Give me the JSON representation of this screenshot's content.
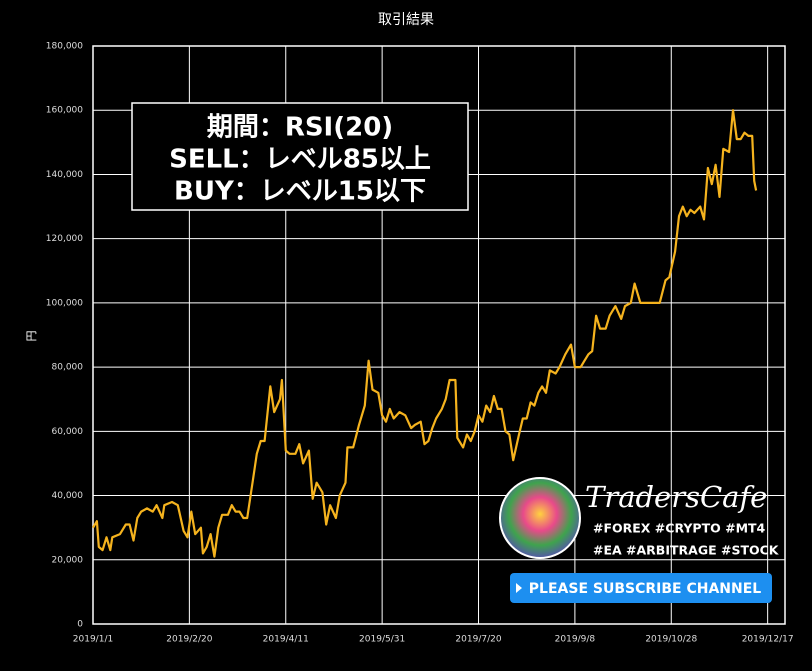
{
  "chart_data": {
    "type": "line",
    "title": "取引結果",
    "y_label": "円",
    "color": "#f5b31e",
    "grid": true,
    "annotations": [
      "期間：RSI(20)",
      "SELL：レベル85以上",
      "BUY：レベル15以下"
    ],
    "x": [
      "2019/1/1",
      "2019/1/3",
      "2019/1/4",
      "2019/1/6",
      "2019/1/8",
      "2019/1/10",
      "2019/1/11",
      "2019/1/15",
      "2019/1/18",
      "2019/1/20",
      "2019/1/22",
      "2019/1/24",
      "2019/1/26",
      "2019/1/29",
      "2019/2/1",
      "2019/2/3",
      "2019/2/6",
      "2019/2/7",
      "2019/2/11",
      "2019/2/14",
      "2019/2/17",
      "2019/2/19",
      "2019/2/21",
      "2019/2/23",
      "2019/2/26",
      "2019/2/27",
      "2019/3/1",
      "2019/3/3",
      "2019/3/5",
      "2019/3/7",
      "2019/3/9",
      "2019/3/12",
      "2019/3/14",
      "2019/3/16",
      "2019/3/18",
      "2019/3/20",
      "2019/3/22",
      "2019/3/25",
      "2019/3/27",
      "2019/3/29",
      "2019/3/31",
      "2019/4/3",
      "2019/4/5",
      "2019/4/8",
      "2019/4/9",
      "2019/4/11",
      "2019/4/13",
      "2019/4/16",
      "2019/4/18",
      "2019/4/20",
      "2019/4/23",
      "2019/4/25",
      "2019/4/27",
      "2019/4/30",
      "2019/5/2",
      "2019/5/4",
      "2019/5/7",
      "2019/5/9",
      "2019/5/12",
      "2019/5/13",
      "2019/5/16",
      "2019/5/19",
      "2019/5/22",
      "2019/5/24",
      "2019/5/26",
      "2019/5/29",
      "2019/5/31",
      "2019/6/2",
      "2019/6/4",
      "2019/6/6",
      "2019/6/9",
      "2019/6/12",
      "2019/6/15",
      "2019/6/17",
      "2019/6/20",
      "2019/6/22",
      "2019/6/24",
      "2019/6/26",
      "2019/6/28",
      "2019/7/1",
      "2019/7/3",
      "2019/7/5",
      "2019/7/8",
      "2019/7/9",
      "2019/7/12",
      "2019/7/14",
      "2019/7/16",
      "2019/7/18",
      "2019/7/20",
      "2019/7/22",
      "2019/7/24",
      "2019/7/26",
      "2019/7/28",
      "2019/7/30",
      "2019/8/1",
      "2019/8/3",
      "2019/8/5",
      "2019/8/7",
      "2019/8/10",
      "2019/8/12",
      "2019/8/14",
      "2019/8/16",
      "2019/8/18",
      "2019/8/20",
      "2019/8/22",
      "2019/8/24",
      "2019/8/26",
      "2019/8/29",
      "2019/8/31",
      "2019/9/3",
      "2019/9/6",
      "2019/9/8",
      "2019/9/11",
      "2019/9/13",
      "2019/9/15",
      "2019/9/17",
      "2019/9/19",
      "2019/9/21",
      "2019/9/24",
      "2019/9/26",
      "2019/9/29",
      "2019/10/2",
      "2019/10/4",
      "2019/10/7",
      "2019/10/9",
      "2019/10/12",
      "2019/10/17",
      "2019/10/22",
      "2019/10/25",
      "2019/10/27",
      "2019/10/30",
      "2019/11/1",
      "2019/11/3",
      "2019/11/5",
      "2019/11/7",
      "2019/11/9",
      "2019/11/12",
      "2019/11/14",
      "2019/11/16",
      "2019/11/18",
      "2019/11/20",
      "2019/11/22",
      "2019/11/24",
      "2019/11/27",
      "2019/11/29",
      "2019/12/1",
      "2019/12/3",
      "2019/12/5",
      "2019/12/7",
      "2019/12/9",
      "2019/12/10",
      "2019/12/11"
    ],
    "values": [
      30000,
      32000,
      24000,
      23000,
      27000,
      23000,
      27000,
      28000,
      31000,
      31000,
      26000,
      33000,
      35000,
      36000,
      35000,
      37000,
      33000,
      37000,
      38000,
      37000,
      29000,
      27000,
      35000,
      28000,
      30000,
      22000,
      24000,
      28000,
      21000,
      30000,
      34000,
      34000,
      37000,
      35000,
      35000,
      33000,
      33000,
      45000,
      53000,
      57000,
      57000,
      74000,
      66000,
      70000,
      76000,
      54000,
      53000,
      53000,
      56000,
      50000,
      54000,
      39000,
      44000,
      41000,
      31000,
      37000,
      33000,
      40000,
      44000,
      55000,
      55000,
      62000,
      68000,
      82000,
      73000,
      72000,
      65000,
      63000,
      67000,
      64000,
      66000,
      65000,
      61000,
      62000,
      63000,
      56000,
      57000,
      61000,
      64000,
      67000,
      70000,
      76000,
      76000,
      58000,
      55000,
      59000,
      57000,
      60000,
      65000,
      63000,
      68000,
      66000,
      71000,
      67000,
      67000,
      60000,
      59000,
      51000,
      59000,
      64000,
      64000,
      69000,
      68000,
      72000,
      74000,
      72000,
      79000,
      78000,
      80000,
      84000,
      87000,
      80000,
      80000,
      82000,
      84000,
      85000,
      96000,
      92000,
      92000,
      96000,
      99000,
      95000,
      99000,
      100000,
      106000,
      100000,
      100000,
      100000,
      107000,
      108000,
      116000,
      127000,
      130000,
      127000,
      129000,
      128000,
      130000,
      126000,
      142000,
      137000,
      143000,
      133000,
      148000,
      147000,
      160000,
      151000,
      151000,
      153000,
      152000,
      152000,
      138000,
      135000
    ],
    "xlim": [
      "2019/1/1",
      "2019/12/26"
    ],
    "xticks": [
      "2019/1/1",
      "2019/2/20",
      "2019/4/11",
      "2019/5/31",
      "2019/7/20",
      "2019/9/8",
      "2019/10/28",
      "2019/12/17"
    ],
    "ylim": [
      0,
      180000
    ],
    "yticks": [
      0,
      {
        "value": 20000,
        "label": "20,000"
      },
      {
        "value": 40000,
        "label": "40,000"
      },
      {
        "value": 60000,
        "label": "60,000"
      },
      {
        "value": 80000,
        "label": "80,000"
      },
      {
        "value": 100000,
        "label": "100,000"
      },
      {
        "value": 120000,
        "label": "120,000"
      },
      {
        "value": 140000,
        "label": "140,000"
      },
      {
        "value": 160000,
        "label": "160,000"
      },
      {
        "value": 180000,
        "label": "180,000"
      }
    ]
  },
  "overlay": {
    "brand": "TradersCafe",
    "tags": [
      "#FOREX #CRYPTO #MT4",
      "#EA #ARBITRAGE #STOCK"
    ],
    "button": "PLEASE SUBSCRIBE CHANNEL"
  }
}
